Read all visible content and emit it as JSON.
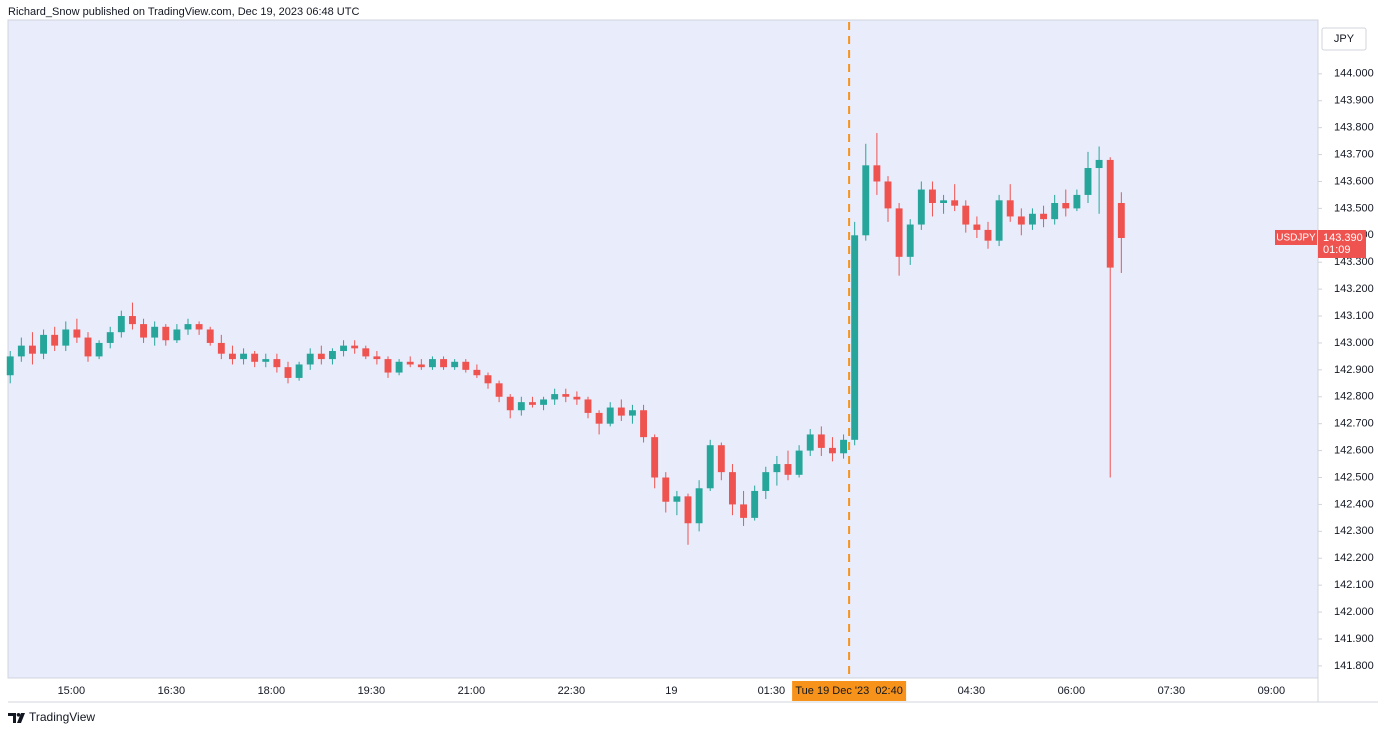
{
  "header": {
    "text": "Richard_Snow published on TradingView.com, Dec 19, 2023 06:48 UTC"
  },
  "chart_data": {
    "type": "candlestick",
    "currency": "JPY",
    "x": [
      "14:05",
      "14:15",
      "14:25",
      "14:35",
      "14:45",
      "14:55",
      "15:05",
      "15:15",
      "15:25",
      "15:35",
      "15:45",
      "15:55",
      "16:05",
      "16:15",
      "16:25",
      "16:35",
      "16:45",
      "16:55",
      "17:05",
      "17:15",
      "17:25",
      "17:35",
      "17:45",
      "17:55",
      "18:05",
      "18:15",
      "18:25",
      "18:35",
      "18:45",
      "18:55",
      "19:05",
      "19:15",
      "19:25",
      "19:35",
      "19:45",
      "19:55",
      "20:05",
      "20:15",
      "20:25",
      "20:35",
      "20:45",
      "20:55",
      "21:05",
      "21:15",
      "21:25",
      "21:35",
      "21:45",
      "21:55",
      "22:05",
      "22:15",
      "22:25",
      "22:35",
      "22:45",
      "22:55",
      "23:05",
      "23:15",
      "23:25",
      "23:35",
      "23:45",
      "23:55",
      "00:05",
      "00:15",
      "00:25",
      "00:35",
      "00:45",
      "00:55",
      "01:05",
      "01:15",
      "01:25",
      "01:35",
      "01:45",
      "01:55",
      "02:05",
      "02:15",
      "02:25",
      "02:35",
      "02:45",
      "02:55",
      "03:05",
      "03:15",
      "03:25",
      "03:35",
      "03:45",
      "03:55",
      "04:05",
      "04:15",
      "04:25",
      "04:35",
      "04:45",
      "04:55",
      "05:05",
      "05:15",
      "05:25",
      "05:35",
      "05:45",
      "05:55",
      "06:05",
      "06:15",
      "06:25",
      "06:35",
      "06:45"
    ],
    "series": [
      {
        "name": "USDJPY",
        "up_color": "#26a69a",
        "down_color": "#ef5350",
        "open": [
          142.88,
          142.95,
          142.99,
          142.96,
          143.03,
          142.99,
          143.05,
          143.02,
          142.95,
          143.0,
          143.04,
          143.1,
          143.07,
          143.02,
          143.06,
          143.01,
          143.05,
          143.07,
          143.05,
          143.0,
          142.96,
          142.94,
          142.96,
          142.93,
          142.94,
          142.91,
          142.87,
          142.92,
          142.96,
          142.94,
          142.97,
          142.99,
          142.98,
          142.95,
          142.94,
          142.89,
          142.93,
          142.92,
          142.91,
          142.94,
          142.91,
          142.93,
          142.9,
          142.88,
          142.85,
          142.8,
          142.75,
          142.78,
          142.77,
          142.79,
          142.81,
          142.8,
          142.79,
          142.74,
          142.7,
          142.76,
          142.73,
          142.75,
          142.65,
          142.5,
          142.41,
          142.43,
          142.33,
          142.46,
          142.62,
          142.52,
          142.4,
          142.35,
          142.45,
          142.52,
          142.55,
          142.51,
          142.6,
          142.66,
          142.61,
          142.59,
          142.64,
          143.4,
          143.66,
          143.6,
          143.5,
          143.32,
          143.44,
          143.57,
          143.52,
          143.53,
          143.51,
          143.44,
          143.42,
          143.38,
          143.53,
          143.47,
          143.44,
          143.48,
          143.46,
          143.52,
          143.5,
          143.55,
          143.65,
          143.68,
          143.52
        ],
        "high": [
          142.97,
          143.02,
          143.04,
          143.05,
          143.06,
          143.08,
          143.09,
          143.04,
          143.01,
          143.06,
          143.12,
          143.15,
          143.09,
          143.08,
          143.07,
          143.07,
          143.09,
          143.08,
          143.06,
          143.03,
          142.99,
          142.98,
          142.97,
          142.96,
          142.96,
          142.93,
          142.93,
          142.98,
          142.99,
          142.98,
          143.01,
          143.01,
          142.99,
          142.97,
          142.95,
          142.94,
          142.95,
          142.94,
          142.95,
          142.95,
          142.94,
          142.94,
          142.92,
          142.89,
          142.86,
          142.81,
          142.8,
          142.8,
          142.8,
          142.83,
          142.83,
          142.82,
          142.8,
          142.75,
          142.78,
          142.79,
          142.77,
          142.77,
          142.66,
          142.52,
          142.45,
          142.44,
          142.49,
          142.64,
          142.63,
          142.55,
          142.45,
          142.47,
          142.54,
          142.58,
          142.6,
          142.62,
          142.68,
          142.69,
          142.65,
          142.66,
          143.45,
          143.74,
          143.78,
          143.62,
          143.52,
          143.46,
          143.6,
          143.6,
          143.55,
          143.59,
          143.53,
          143.47,
          143.45,
          143.55,
          143.59,
          143.5,
          143.5,
          143.51,
          143.55,
          143.57,
          143.57,
          143.71,
          143.73,
          143.69,
          143.56
        ],
        "low": [
          142.85,
          142.93,
          142.92,
          142.94,
          142.97,
          142.97,
          143.0,
          142.93,
          142.94,
          142.98,
          143.02,
          143.05,
          143.0,
          142.99,
          142.99,
          143.0,
          143.03,
          143.03,
          142.99,
          142.94,
          142.92,
          142.92,
          142.91,
          142.91,
          142.89,
          142.85,
          142.86,
          142.9,
          142.92,
          142.92,
          142.95,
          142.96,
          142.94,
          142.92,
          142.87,
          142.88,
          142.91,
          142.9,
          142.9,
          142.9,
          142.9,
          142.89,
          142.87,
          142.83,
          142.78,
          142.72,
          142.73,
          142.76,
          142.75,
          142.77,
          142.78,
          142.77,
          142.72,
          142.66,
          142.69,
          142.71,
          142.7,
          142.63,
          142.46,
          142.37,
          142.36,
          142.25,
          142.3,
          142.45,
          142.49,
          142.36,
          142.32,
          142.34,
          142.42,
          142.47,
          142.49,
          142.5,
          142.58,
          142.58,
          142.56,
          142.57,
          142.62,
          143.38,
          143.55,
          143.45,
          143.25,
          143.29,
          143.42,
          143.47,
          143.48,
          143.49,
          143.41,
          143.39,
          143.35,
          143.36,
          143.45,
          143.4,
          143.42,
          143.43,
          143.44,
          143.47,
          143.49,
          143.52,
          143.48,
          142.5,
          143.26
        ],
        "close": [
          142.95,
          142.99,
          142.96,
          143.03,
          142.99,
          143.05,
          143.02,
          142.95,
          143.0,
          143.04,
          143.1,
          143.07,
          143.02,
          143.06,
          143.01,
          143.05,
          143.07,
          143.05,
          143.0,
          142.96,
          142.94,
          142.96,
          142.93,
          142.94,
          142.91,
          142.87,
          142.92,
          142.96,
          142.94,
          142.97,
          142.99,
          142.98,
          142.95,
          142.94,
          142.89,
          142.93,
          142.92,
          142.91,
          142.94,
          142.91,
          142.93,
          142.9,
          142.88,
          142.85,
          142.8,
          142.75,
          142.78,
          142.77,
          142.79,
          142.81,
          142.8,
          142.79,
          142.74,
          142.7,
          142.76,
          142.73,
          142.75,
          142.65,
          142.5,
          142.41,
          142.43,
          142.33,
          142.46,
          142.62,
          142.52,
          142.4,
          142.35,
          142.45,
          142.52,
          142.55,
          142.51,
          142.6,
          142.66,
          142.61,
          142.59,
          142.64,
          143.4,
          143.66,
          143.6,
          143.5,
          143.32,
          143.44,
          143.57,
          143.52,
          143.53,
          143.51,
          143.44,
          143.42,
          143.38,
          143.53,
          143.47,
          143.44,
          143.48,
          143.46,
          143.52,
          143.5,
          143.55,
          143.65,
          143.68,
          143.28,
          143.39
        ]
      }
    ],
    "last": {
      "value": 143.39,
      "label": "143.390",
      "countdown": "01:09"
    },
    "xlim": [
      "14:03",
      "09:42"
    ],
    "xticks": [
      "15:00",
      "16:30",
      "18:00",
      "19:30",
      "21:00",
      "22:30",
      "19",
      "01:30",
      "04:30",
      "06:00",
      "07:30",
      "09:00"
    ],
    "crosshair": {
      "x": "02:40",
      "label": "Tue 19 Dec '23  02:40",
      "color": "#f7931a"
    },
    "ylim": [
      141.755,
      144.2
    ],
    "yticks": [
      {
        "value": 141.8,
        "label": "141.800"
      },
      {
        "value": 141.9,
        "label": "141.900"
      },
      {
        "value": 142.0,
        "label": "142.000"
      },
      {
        "value": 142.1,
        "label": "142.100"
      },
      {
        "value": 142.2,
        "label": "142.200"
      },
      {
        "value": 142.3,
        "label": "142.300"
      },
      {
        "value": 142.4,
        "label": "142.400"
      },
      {
        "value": 142.5,
        "label": "142.500"
      },
      {
        "value": 142.6,
        "label": "142.600"
      },
      {
        "value": 142.7,
        "label": "142.700"
      },
      {
        "value": 142.8,
        "label": "142.800"
      },
      {
        "value": 142.9,
        "label": "142.900"
      },
      {
        "value": 143.0,
        "label": "143.000"
      },
      {
        "value": 143.1,
        "label": "143.100"
      },
      {
        "value": 143.2,
        "label": "143.200"
      },
      {
        "value": 143.3,
        "label": "143.300"
      },
      {
        "value": 143.4,
        "label": "143.400"
      },
      {
        "value": 143.5,
        "label": "143.500"
      },
      {
        "value": 143.6,
        "label": "143.600"
      },
      {
        "value": 143.7,
        "label": "143.700"
      },
      {
        "value": 143.8,
        "label": "143.800"
      },
      {
        "value": 143.9,
        "label": "143.900"
      },
      {
        "value": 144.0,
        "label": "144.000"
      }
    ],
    "grid": false,
    "background": "#e8ecfb"
  },
  "footer": {
    "text": "TradingView"
  }
}
